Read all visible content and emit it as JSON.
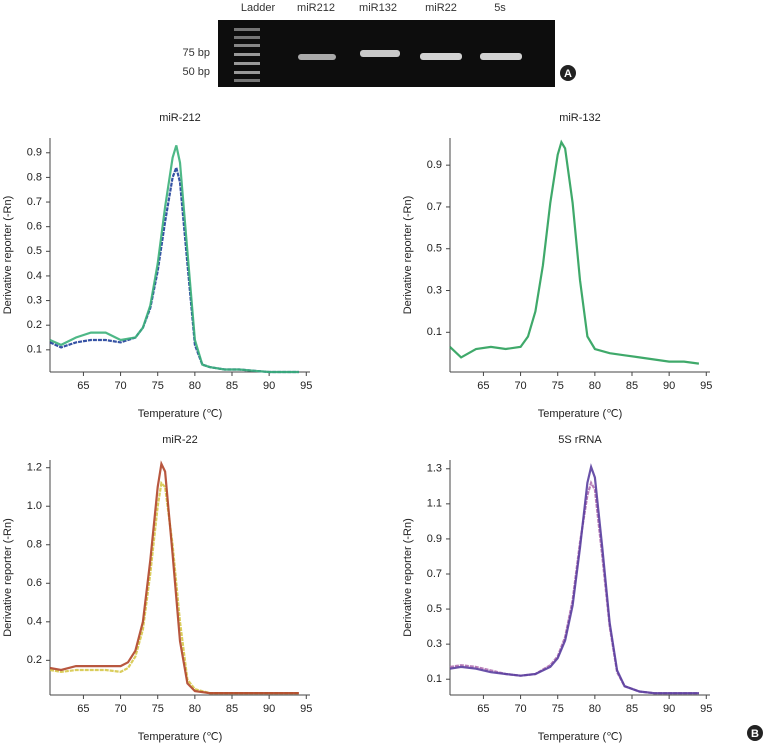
{
  "gel": {
    "lanes": [
      "Ladder",
      "miR212",
      "miR132",
      "miR22",
      "5s"
    ],
    "markers": [
      "75 bp",
      "50 bp"
    ]
  },
  "panel_labels": [
    "A",
    "B"
  ],
  "chart_data": [
    {
      "type": "line",
      "title": "miR-212",
      "x_label": "Temperature (℃)",
      "y_label": "Derivative reporter (-Rn)",
      "x": [
        60.5,
        62,
        64,
        66,
        68,
        70,
        72,
        73,
        74,
        75,
        76,
        77,
        77.5,
        78,
        79,
        80,
        81,
        82,
        84,
        86,
        88,
        90,
        92,
        94
      ],
      "series": [
        {
          "color": "#1f3f9a",
          "values": [
            0.13,
            0.11,
            0.13,
            0.14,
            0.14,
            0.13,
            0.15,
            0.19,
            0.27,
            0.42,
            0.62,
            0.8,
            0.84,
            0.78,
            0.45,
            0.12,
            0.04,
            0.03,
            0.02,
            0.02,
            0.015,
            0.01,
            0.01,
            0.01
          ]
        },
        {
          "color": "#3bb07a",
          "values": [
            0.14,
            0.12,
            0.15,
            0.17,
            0.17,
            0.14,
            0.15,
            0.19,
            0.28,
            0.45,
            0.68,
            0.88,
            0.93,
            0.86,
            0.5,
            0.14,
            0.04,
            0.03,
            0.02,
            0.02,
            0.015,
            0.01,
            0.01,
            0.01
          ]
        }
      ],
      "xlim": [
        60.5,
        95.5
      ],
      "xticks": [
        65,
        70,
        75,
        80,
        85,
        90,
        95
      ],
      "ylim": [
        0.01,
        0.96
      ],
      "yticks": [
        0.1,
        0.2,
        0.3,
        0.4,
        0.5,
        0.6,
        0.7,
        0.8,
        0.9
      ]
    },
    {
      "type": "line",
      "title": "miR-132",
      "x_label": "Temperature (℃)",
      "y_label": "Derivative reporter (-Rn)",
      "x": [
        60.5,
        62,
        64,
        66,
        68,
        70,
        71,
        72,
        73,
        74,
        75,
        75.5,
        76,
        77,
        78,
        79,
        80,
        82,
        84,
        86,
        88,
        90,
        92,
        94
      ],
      "series": [
        {
          "color": "#2aa05a",
          "values": [
            0.03,
            -0.02,
            0.02,
            0.03,
            0.02,
            0.03,
            0.08,
            0.2,
            0.42,
            0.72,
            0.95,
            1.01,
            0.98,
            0.72,
            0.35,
            0.08,
            0.02,
            0.0,
            -0.01,
            -0.02,
            -0.03,
            -0.04,
            -0.04,
            -0.05
          ]
        }
      ],
      "xlim": [
        60.5,
        95.5
      ],
      "xticks": [
        65,
        70,
        75,
        80,
        85,
        90,
        95
      ],
      "ylim": [
        -0.09,
        1.03
      ],
      "yticks": [
        0.1,
        0.3,
        0.5,
        0.7,
        0.9
      ]
    },
    {
      "type": "line",
      "title": "miR-22",
      "x_label": "Temperature (℃)",
      "y_label": "Derivative reporter (-Rn)",
      "x": [
        60.5,
        62,
        64,
        66,
        68,
        70,
        71,
        72,
        73,
        74,
        75,
        75.5,
        76,
        77,
        78,
        79,
        80,
        82,
        84,
        86,
        88,
        90,
        92,
        94
      ],
      "series": [
        {
          "color": "#d6c84a",
          "values": [
            0.15,
            0.14,
            0.15,
            0.15,
            0.15,
            0.14,
            0.16,
            0.22,
            0.36,
            0.65,
            1.0,
            1.12,
            1.1,
            0.8,
            0.4,
            0.1,
            0.05,
            0.03,
            0.03,
            0.03,
            0.03,
            0.03,
            0.03,
            0.03
          ]
        },
        {
          "color": "#b0452a",
          "values": [
            0.16,
            0.15,
            0.17,
            0.17,
            0.17,
            0.17,
            0.19,
            0.25,
            0.4,
            0.72,
            1.1,
            1.22,
            1.18,
            0.75,
            0.3,
            0.08,
            0.04,
            0.03,
            0.03,
            0.03,
            0.03,
            0.03,
            0.03,
            0.03
          ]
        }
      ],
      "xlim": [
        60.5,
        95.5
      ],
      "xticks": [
        65,
        70,
        75,
        80,
        85,
        90,
        95
      ],
      "ylim": [
        0.02,
        1.24
      ],
      "yticks": [
        0.2,
        0.4,
        0.6,
        0.8,
        {
          "value": 1,
          "label": "1.0"
        },
        1.2
      ]
    },
    {
      "type": "line",
      "title": "5S rRNA",
      "x_label": "Temperature (℃)",
      "y_label": "Derivative reporter (-Rn)",
      "x": [
        60.5,
        62,
        64,
        66,
        68,
        70,
        72,
        74,
        75,
        76,
        77,
        78,
        79,
        79.5,
        80,
        81,
        82,
        83,
        84,
        86,
        88,
        90,
        92,
        94
      ],
      "series": [
        {
          "color": "#b070b0",
          "values": [
            0.17,
            0.18,
            0.17,
            0.15,
            0.13,
            0.12,
            0.13,
            0.18,
            0.23,
            0.34,
            0.55,
            0.88,
            1.15,
            1.22,
            1.18,
            0.8,
            0.4,
            0.14,
            0.06,
            0.03,
            0.02,
            0.02,
            0.02,
            0.02
          ]
        },
        {
          "color": "#5a3fa0",
          "values": [
            0.16,
            0.17,
            0.16,
            0.14,
            0.13,
            0.12,
            0.13,
            0.17,
            0.22,
            0.32,
            0.52,
            0.85,
            1.22,
            1.31,
            1.25,
            0.85,
            0.42,
            0.15,
            0.06,
            0.03,
            0.02,
            0.02,
            0.02,
            0.02
          ]
        }
      ],
      "xlim": [
        60.5,
        95.5
      ],
      "xticks": [
        65,
        70,
        75,
        80,
        85,
        90,
        95
      ],
      "ylim": [
        0.01,
        1.35
      ],
      "yticks": [
        0.1,
        0.3,
        0.5,
        0.7,
        0.9,
        1.1,
        1.3
      ]
    }
  ]
}
